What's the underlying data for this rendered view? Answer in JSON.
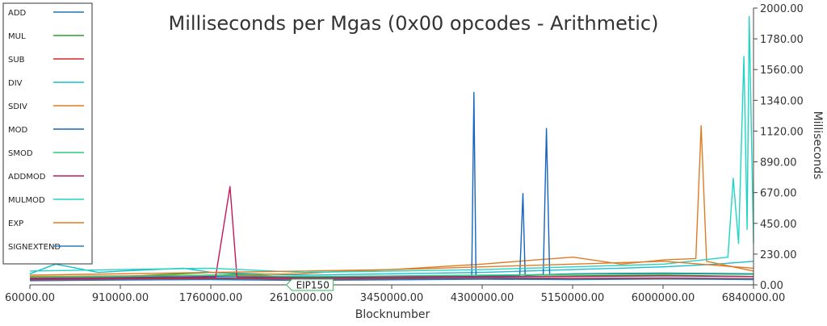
{
  "chart_data": {
    "type": "line",
    "title": "Milliseconds per Mgas (0x00 opcodes - Arithmetic)",
    "xlabel": "Blocknumber",
    "ylabel": "Milliseconds",
    "xlim": [
      60000,
      6840000
    ],
    "ylim": [
      0,
      2000
    ],
    "x_ticks": [
      "60000.00",
      "910000.00",
      "1760000.00",
      "2610000.00",
      "3450000.00",
      "4300000.00",
      "5150000.00",
      "6000000.00",
      "6840000.00"
    ],
    "y_ticks": [
      "0.00",
      "230.00",
      "450.00",
      "670.00",
      "890.00",
      "1120.00",
      "1340.00",
      "1560.00",
      "1780.00",
      "2000.00"
    ],
    "grid": false,
    "legend_position": "left",
    "annotations": [
      {
        "label": "EIP150",
        "x": 2463000
      }
    ],
    "colors": {
      "ADD": "#1f77b4",
      "MUL": "#2ca02c",
      "SUB": "#d62728",
      "DIV": "#17becf",
      "SDIV": "#e07b22",
      "MOD": "#1565c0",
      "SMOD": "#2ecc71",
      "ADDMOD": "#c2185b",
      "MULMOD": "#20d4c4",
      "EXP": "#e07b22",
      "SIGNEXTEND": "#2c7fb8"
    },
    "series": [
      {
        "name": "ADD",
        "x": [
          60000,
          910000,
          1760000,
          2610000,
          3450000,
          4300000,
          5150000,
          6000000,
          6840000
        ],
        "values": [
          40,
          45,
          50,
          42,
          48,
          52,
          47,
          50,
          45
        ]
      },
      {
        "name": "MUL",
        "x": [
          60000,
          500000,
          910000,
          1760000,
          2610000,
          3450000,
          4300000,
          5150000,
          6000000,
          6840000
        ],
        "values": [
          45,
          55,
          60,
          90,
          50,
          55,
          60,
          65,
          70,
          60
        ]
      },
      {
        "name": "SUB",
        "x": [
          60000,
          910000,
          1760000,
          2610000,
          3450000,
          4300000,
          5150000,
          6000000,
          6840000
        ],
        "values": [
          35,
          40,
          45,
          40,
          42,
          45,
          44,
          48,
          42
        ]
      },
      {
        "name": "DIV",
        "x": [
          60000,
          300000,
          700000,
          910000,
          1500000,
          1760000,
          2610000,
          3450000,
          4300000,
          5150000,
          6000000,
          6500000,
          6840000
        ],
        "values": [
          80,
          150,
          90,
          100,
          120,
          90,
          70,
          80,
          90,
          110,
          130,
          150,
          170
        ]
      },
      {
        "name": "SDIV",
        "x": [
          60000,
          910000,
          1760000,
          2610000,
          3000000,
          3450000,
          4300000,
          4800000,
          5150000,
          5600000,
          6000000,
          6300000,
          6350000,
          6400000,
          6840000
        ],
        "values": [
          60,
          65,
          70,
          80,
          100,
          110,
          150,
          180,
          200,
          150,
          180,
          190,
          1150,
          170,
          100
        ]
      },
      {
        "name": "MOD",
        "x": [
          60000,
          910000,
          1760000,
          2610000,
          3450000,
          4200000,
          4220000,
          4240000,
          4300000,
          4650000,
          4680000,
          4700000,
          4870000,
          4900000,
          4930000,
          5150000,
          6000000,
          6840000
        ],
        "values": [
          50,
          55,
          60,
          55,
          60,
          60,
          1390,
          60,
          65,
          70,
          660,
          70,
          75,
          1130,
          75,
          80,
          85,
          80
        ]
      },
      {
        "name": "SMOD",
        "x": [
          60000,
          910000,
          1760000,
          2610000,
          3450000,
          4300000,
          5150000,
          6000000,
          6840000
        ],
        "values": [
          55,
          60,
          70,
          60,
          65,
          70,
          75,
          80,
          75
        ]
      },
      {
        "name": "ADDMOD",
        "x": [
          60000,
          910000,
          1800000,
          1935000,
          2000000,
          2610000,
          3450000,
          4300000,
          5150000,
          6000000,
          6840000
        ],
        "values": [
          45,
          50,
          55,
          710,
          55,
          50,
          55,
          60,
          60,
          65,
          60
        ]
      },
      {
        "name": "MULMOD",
        "x": [
          60000,
          910000,
          1760000,
          2610000,
          3450000,
          4300000,
          5150000,
          6000000,
          6600000,
          6650000,
          6700000,
          6750000,
          6780000,
          6800000,
          6840000
        ],
        "values": [
          100,
          110,
          120,
          90,
          100,
          110,
          130,
          150,
          200,
          770,
          300,
          1650,
          400,
          1940,
          300
        ]
      },
      {
        "name": "EXP",
        "x": [
          60000,
          910000,
          1760000,
          2610000,
          3450000,
          4300000,
          5150000,
          6000000,
          6840000
        ],
        "values": [
          70,
          80,
          90,
          100,
          110,
          130,
          150,
          170,
          120
        ]
      },
      {
        "name": "SIGNEXTEND",
        "x": [
          60000,
          910000,
          1760000,
          2610000,
          3450000,
          4300000,
          5150000,
          6000000,
          6840000
        ],
        "values": [
          30,
          35,
          38,
          32,
          36,
          40,
          38,
          42,
          38
        ]
      }
    ]
  }
}
